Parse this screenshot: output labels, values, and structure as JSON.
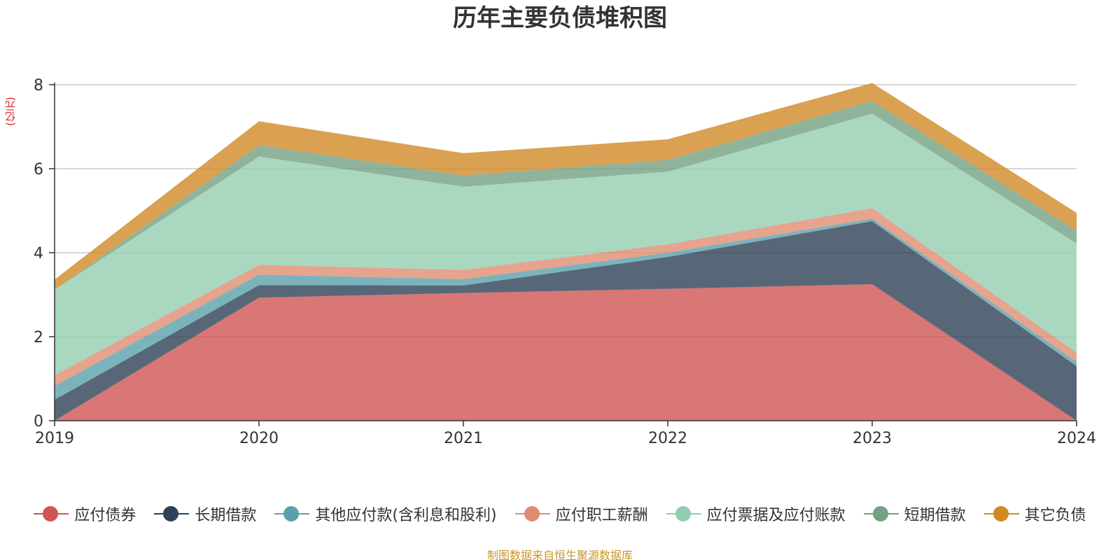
{
  "chart_data": {
    "type": "area",
    "stacked": true,
    "title": "历年主要负债堆积图",
    "unit_label": "(亿元)",
    "x": [
      "2019",
      "2020",
      "2021",
      "2022",
      "2023",
      "2024"
    ],
    "ylim": [
      0,
      8
    ],
    "yticks": [
      "0",
      "2",
      "4",
      "6",
      "8"
    ],
    "grid": true,
    "legend_position": "bottom",
    "series": [
      {
        "name": "应付债券",
        "color": "#d05454",
        "values": [
          0.0,
          2.93,
          3.04,
          3.14,
          3.25,
          0.0
        ]
      },
      {
        "name": "长期借款",
        "color": "#2e4156",
        "values": [
          0.5,
          0.3,
          0.18,
          0.76,
          1.5,
          1.3
        ]
      },
      {
        "name": "其他应付款(含利息和股利)",
        "color": "#5aa0ac",
        "values": [
          0.33,
          0.25,
          0.15,
          0.1,
          0.06,
          0.1
        ]
      },
      {
        "name": "应付职工薪酬",
        "color": "#e08c70",
        "values": [
          0.25,
          0.23,
          0.22,
          0.2,
          0.25,
          0.22
        ]
      },
      {
        "name": "应付票据及应付账款",
        "color": "#93cdb0",
        "values": [
          2.04,
          2.58,
          1.98,
          1.73,
          2.25,
          2.6
        ]
      },
      {
        "name": "短期借款",
        "color": "#74a083",
        "values": [
          0.0,
          0.27,
          0.27,
          0.28,
          0.3,
          0.3
        ]
      },
      {
        "name": "其它负债",
        "color": "#cf8a25",
        "values": [
          0.24,
          0.57,
          0.53,
          0.49,
          0.43,
          0.43
        ]
      }
    ]
  },
  "source_note": "制图数据来自恒生聚源数据库"
}
